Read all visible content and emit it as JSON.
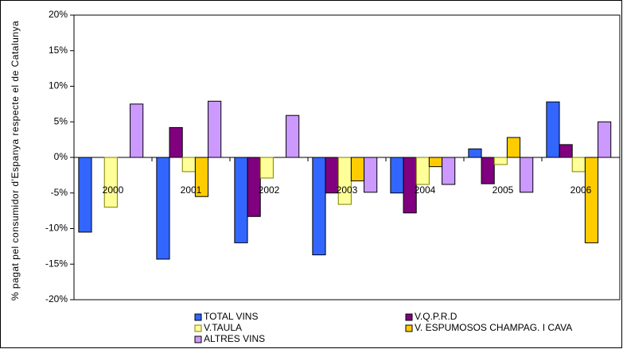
{
  "chart_data": {
    "type": "bar",
    "y_label": "% pagat pel consumidor d'Espanya respecte el de Catalunya",
    "categories": [
      "2000",
      "2001",
      "2002",
      "2003",
      "2004",
      "2005",
      "2006"
    ],
    "series": [
      {
        "name": "TOTAL VINS",
        "color": "#3366ff",
        "values": [
          -10.5,
          -14.3,
          -12,
          -13.7,
          -5,
          1.2,
          7.8
        ]
      },
      {
        "name": "V.Q.P.R.D",
        "color": "#800080",
        "values": [
          0,
          4.2,
          -8.3,
          -5,
          -7.8,
          -3.7,
          1.8
        ]
      },
      {
        "name": "V.TAULA",
        "color": "#ffff99",
        "values": [
          -7,
          -2,
          -2.9,
          -6.6,
          -3.8,
          -1,
          -2
        ]
      },
      {
        "name": "V. ESPUMOSOS CHAMPAG. I CAVA",
        "color": "#ffcc00",
        "values": [
          0,
          -5.5,
          0,
          -3.3,
          -1.3,
          2.8,
          -12
        ]
      },
      {
        "name": "ALTRES VINS",
        "color": "#cc99ff",
        "values": [
          7.5,
          7.9,
          5.9,
          -4.9,
          -3.8,
          -4.9,
          5
        ]
      }
    ],
    "ylim": [
      -20,
      20
    ],
    "yticks": [
      {
        "value": -20,
        "label": "-20%"
      },
      {
        "value": -15,
        "label": "-15%"
      },
      {
        "value": -10,
        "label": "-10%"
      },
      {
        "value": -5,
        "label": "-5%"
      },
      {
        "value": 0,
        "label": "0%"
      },
      {
        "value": 5,
        "label": "5%"
      },
      {
        "value": 10,
        "label": "10%"
      },
      {
        "value": 15,
        "label": "15%"
      },
      {
        "value": 20,
        "label": "20%"
      }
    ],
    "grid": false
  }
}
